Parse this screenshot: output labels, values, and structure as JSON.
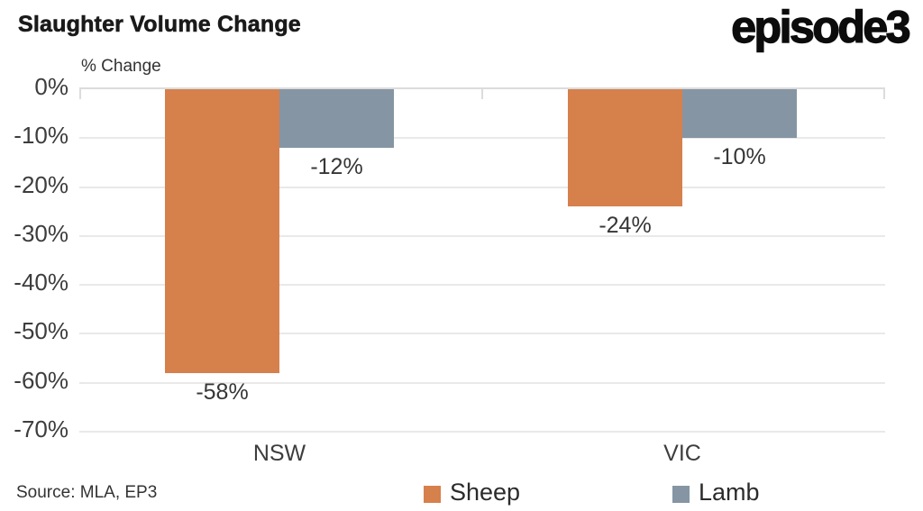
{
  "page": {
    "title": "Slaughter Volume Change",
    "logo": "episode3",
    "source": "Source: MLA, EP3"
  },
  "chart_data": {
    "type": "bar",
    "title": "Slaughter Volume Change",
    "ylabel": "% Change",
    "xlabel": "",
    "categories": [
      "NSW",
      "VIC"
    ],
    "series": [
      {
        "name": "Sheep",
        "color": "#D6804C",
        "values": [
          -58,
          -24
        ],
        "labels": [
          "-58%",
          "-24%"
        ]
      },
      {
        "name": "Lamb",
        "color": "#8595A3",
        "values": [
          -12,
          -10
        ],
        "labels": [
          "-12%",
          "-10%"
        ]
      }
    ],
    "ylim": [
      -70,
      0
    ],
    "yticks": [
      0,
      -10,
      -20,
      -30,
      -40,
      -50,
      -60,
      -70
    ],
    "ytick_labels": [
      "0%",
      "-10%",
      "-20%",
      "-30%",
      "-40%",
      "-50%",
      "-60%",
      "-70%"
    ],
    "grid": true,
    "legend_position": "bottom"
  },
  "legend": {
    "items": [
      {
        "label": "Sheep",
        "color": "#D6804C"
      },
      {
        "label": "Lamb",
        "color": "#8595A3"
      }
    ]
  },
  "colors": {
    "sheep": "#D6804C",
    "lamb": "#8595A3",
    "grid": "#E9E9E9",
    "axis": "#DCDCDC",
    "tick_text": "#3D3D3D",
    "title_text": "#1A1A1A"
  }
}
